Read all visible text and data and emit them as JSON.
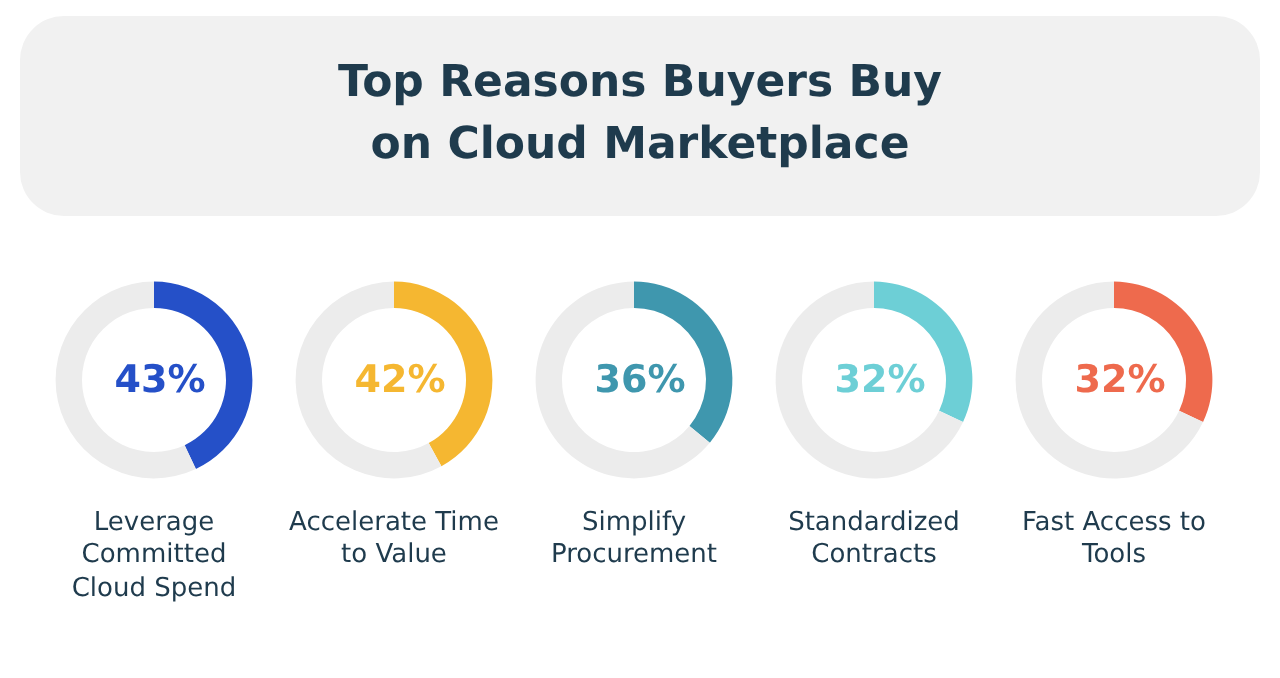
{
  "chart_data": [
    {
      "type": "other",
      "title": "Top Reasons Buyers Buy on Cloud Marketplace"
    },
    {
      "type": "donut",
      "xlabel": "Leverage Committed Cloud Spend",
      "categories": [
        null,
        null
      ],
      "values": [
        43,
        57
      ],
      "colors": [
        "#2550c8",
        "#ececec"
      ],
      "value_labels": [
        "43%",
        null
      ]
    },
    {
      "type": "donut",
      "xlabel": "Accelerate Time to Value",
      "categories": [
        null,
        null
      ],
      "values": [
        42,
        58
      ],
      "colors": [
        "#f5b731",
        "#ececec"
      ],
      "value_labels": [
        "42%",
        null
      ]
    },
    {
      "type": "donut",
      "xlabel": "Simplify Procurement",
      "categories": [
        null,
        null
      ],
      "values": [
        36,
        64
      ],
      "colors": [
        "#3f97ae",
        "#ececec"
      ],
      "value_labels": [
        "36%",
        null
      ]
    },
    {
      "type": "donut",
      "xlabel": "Standardized Contracts",
      "categories": [
        null,
        null
      ],
      "values": [
        32,
        68
      ],
      "colors": [
        "#6dcfd6",
        "#ececec"
      ],
      "value_labels": [
        "32%",
        null
      ]
    },
    {
      "type": "donut",
      "xlabel": "Fast Access to Tools",
      "categories": [
        null,
        null
      ],
      "values": [
        32,
        68
      ],
      "colors": [
        "#ee6a4d",
        "#ececec"
      ],
      "value_labels": [
        "32%",
        null
      ]
    }
  ]
}
